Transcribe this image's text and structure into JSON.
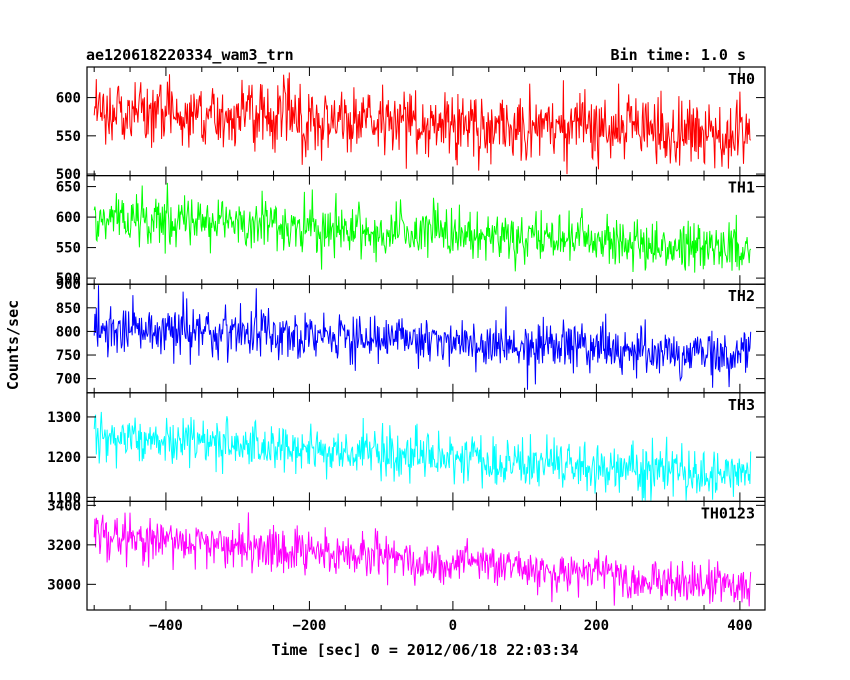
{
  "header": {
    "title": "ae120618220334_wam3_trn",
    "bin_time": "Bin time: 1.0 s"
  },
  "chart_data": {
    "type": "line",
    "title": "ae120618220334_wam3_trn",
    "xlabel": "Time [sec] 0 = 2012/06/18 22:03:34",
    "ylabel": "Counts/sec",
    "xlim": [
      -510,
      435
    ],
    "x_ticks": [
      -400,
      -200,
      0,
      200,
      400
    ],
    "x_tick_labels": [
      "−400",
      "−200",
      "0",
      "200",
      "400"
    ],
    "x_range": [
      -500,
      415
    ],
    "bin_time_s": 1.0,
    "grid": false,
    "panels": [
      {
        "name": "TH0",
        "color": "#ff0000",
        "ylim": [
          498,
          640
        ],
        "yticks": [
          500,
          550,
          600
        ],
        "trend": {
          "x": [
            -500,
            415
          ],
          "y": [
            582,
            552
          ]
        },
        "noise_sd": 22,
        "clip": [
          500,
          640
        ]
      },
      {
        "name": "TH1",
        "color": "#00ff00",
        "ylim": [
          490,
          668
        ],
        "yticks": [
          500,
          550,
          600,
          650
        ],
        "trend": {
          "x": [
            -500,
            415
          ],
          "y": [
            601,
            548
          ]
        },
        "noise_sd": 21,
        "clip": [
          492,
          668
        ]
      },
      {
        "name": "TH2",
        "color": "#0000ff",
        "ylim": [
          670,
          900
        ],
        "yticks": [
          700,
          750,
          800,
          850,
          900
        ],
        "trend": {
          "x": [
            -500,
            415
          ],
          "y": [
            806,
            752
          ]
        },
        "noise_sd": 26,
        "clip": [
          672,
          900
        ]
      },
      {
        "name": "TH3",
        "color": "#00ffff",
        "ylim": [
          1090,
          1360
        ],
        "yticks": [
          1100,
          1200,
          1300
        ],
        "trend": {
          "x": [
            -500,
            415
          ],
          "y": [
            1255,
            1150
          ]
        },
        "noise_sd": 30,
        "clip": [
          1092,
          1360
        ]
      },
      {
        "name": "TH0123",
        "color": "#ff00ff",
        "ylim": [
          2870,
          3420
        ],
        "yticks": [
          3000,
          3200,
          3400
        ],
        "trend": {
          "x": [
            -500,
            415
          ],
          "y": [
            3255,
            2985
          ]
        },
        "noise_sd": 55,
        "clip": [
          2875,
          3420
        ]
      }
    ]
  }
}
